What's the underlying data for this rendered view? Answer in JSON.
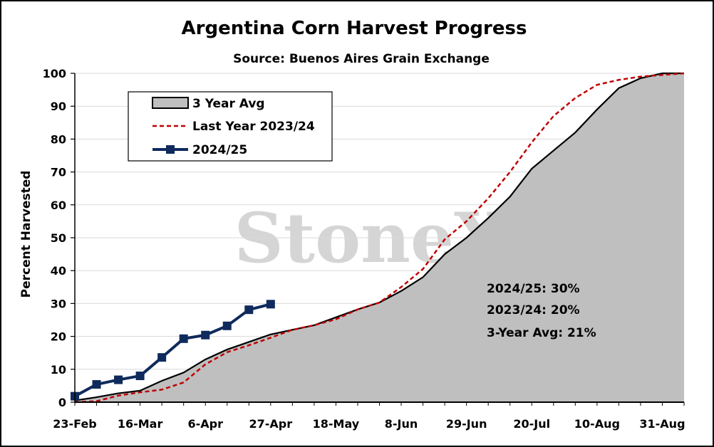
{
  "chart_data": {
    "type": "area",
    "title": "Argentina Corn Harvest Progress",
    "subtitle": "Source: Buenos Aires Grain Exchange",
    "ylabel": "Percent Harvested",
    "xlabel": "",
    "ylim": [
      0,
      100
    ],
    "yticks": [
      0,
      10,
      20,
      30,
      40,
      50,
      60,
      70,
      80,
      90,
      100
    ],
    "xtick_labels": [
      "23-Feb",
      "16-Mar",
      "6-Apr",
      "27-Apr",
      "18-May",
      "8-Jun",
      "29-Jun",
      "20-Jul",
      "10-Aug",
      "31-Aug"
    ],
    "grid": true,
    "legend_position": "top-left",
    "watermark": "StoneX",
    "series": [
      {
        "name": "3 Year Avg",
        "style": "filled-area",
        "color": "#000000",
        "fill": "#bfbfbf",
        "values": [
          0.5,
          1.5,
          2.7,
          3.5,
          6.5,
          9,
          13,
          16,
          18.3,
          20.6,
          22,
          23.4,
          25.8,
          28.2,
          30.3,
          33.8,
          38,
          45,
          50,
          56,
          62.5,
          71,
          76.5,
          82,
          89,
          95.5,
          98.5,
          100,
          100
        ]
      },
      {
        "name": "Last Year 2023/24",
        "style": "dashed",
        "color": "#c00000",
        "values": [
          0,
          0.3,
          2,
          3,
          3.8,
          6,
          11.5,
          15.2,
          17.3,
          19.6,
          22,
          23.4,
          25.2,
          28.2,
          30.3,
          35,
          40.5,
          49.5,
          55,
          62,
          70,
          79,
          87,
          92.5,
          96.5,
          98,
          99,
          99.5,
          100
        ]
      },
      {
        "name": "2024/25",
        "style": "line-markers",
        "color": "#0f2a5c",
        "values": [
          1.8,
          5.4,
          6.8,
          8,
          13.6,
          19.3,
          20.4,
          23.2,
          28.1,
          29.8
        ]
      }
    ],
    "annotations": [
      "2024/25: 30%",
      "2023/24: 20%",
      "3-Year Avg: 21%"
    ]
  }
}
